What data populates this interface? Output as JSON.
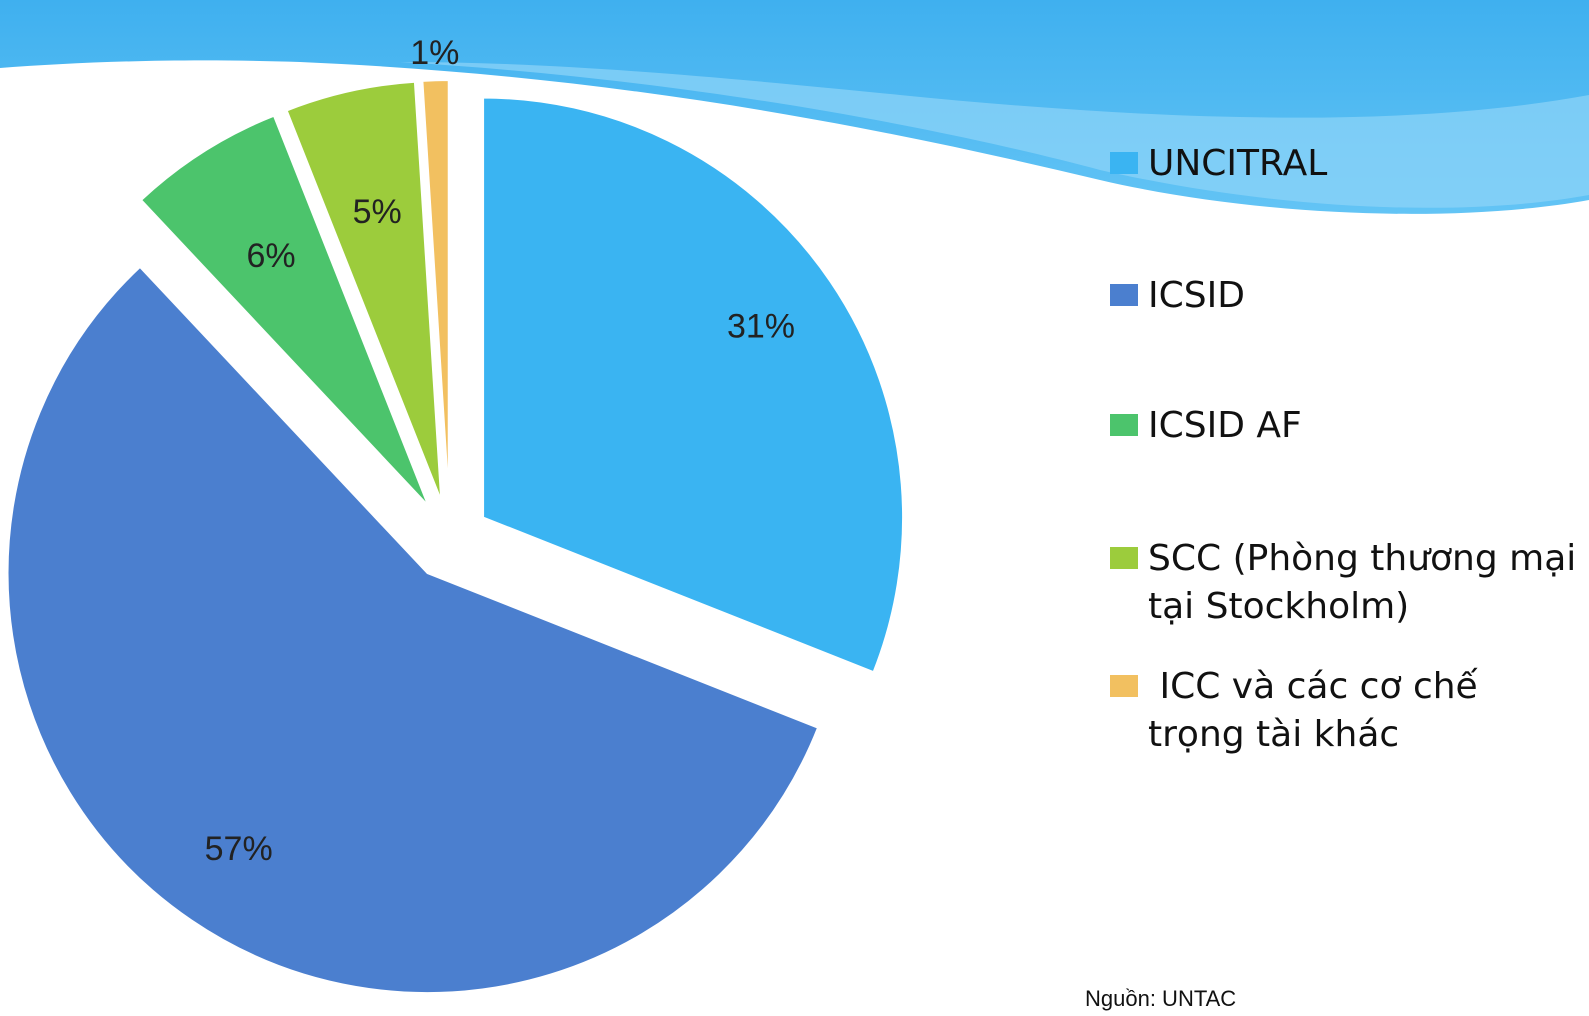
{
  "chart_data": {
    "type": "pie",
    "categories": [
      "UNCITRAL",
      "ICSID",
      "ICSID AF",
      "SCC (Phòng thương mại tại Stockholm)",
      " ICC và các cơ chế trọng tài khác"
    ],
    "values": [
      31,
      57,
      6,
      5,
      1
    ],
    "value_labels": [
      "31%",
      "57%",
      "6%",
      "5%",
      "1%"
    ],
    "colors": [
      "#3ab4f2",
      "#4b7fcf",
      "#4cc46c",
      "#9ccc3c",
      "#f2c060"
    ],
    "source": "Nguồn: UNTAC"
  }
}
